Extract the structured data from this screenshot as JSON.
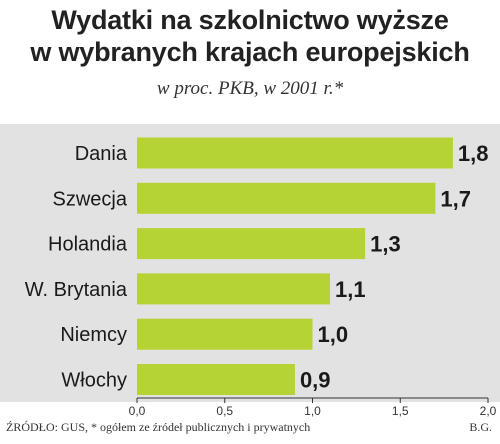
{
  "chart_data": {
    "type": "bar",
    "orientation": "horizontal",
    "title_line1": "Wydatki na szkolnictwo wyższe",
    "title_line2": "w wybranych krajach europejskich",
    "subtitle": "w proc. PKB, w 2001 r.*",
    "categories": [
      "Dania",
      "Szwecja",
      "Holandia",
      "W. Brytania",
      "Niemcy",
      "Włochy"
    ],
    "values": [
      1.8,
      1.7,
      1.3,
      1.1,
      1.0,
      0.9
    ],
    "value_labels": [
      "1,8",
      "1,7",
      "1,3",
      "1,1",
      "1,0",
      "0,9"
    ],
    "xlim": [
      0,
      2.0
    ],
    "xticks": [
      0,
      0.5,
      1.0,
      1.5,
      2.0
    ],
    "xtick_labels": [
      "0,0",
      "0,5",
      "1,0",
      "1,5",
      "2,0"
    ],
    "bar_color": "#b5d334",
    "panel_color": "#e2e2e2",
    "grid": false
  },
  "footer": {
    "source": "ŹRÓDŁO: GUS, * ogółem ze źródeł publicznych i prywatnych",
    "credit": "B.G."
  }
}
